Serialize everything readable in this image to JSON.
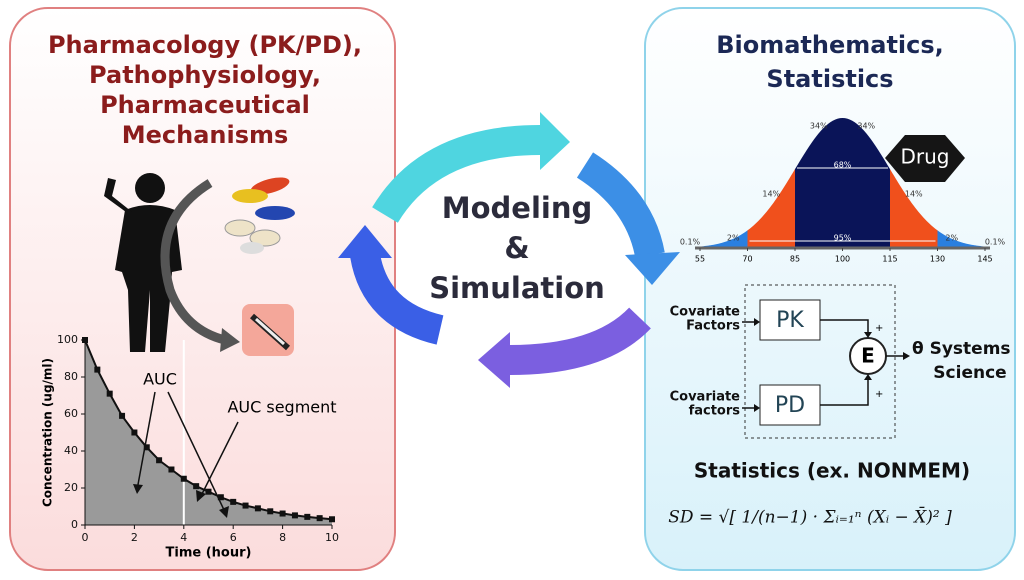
{
  "left_panel": {
    "title": [
      "Pharmacology (PK/PD),",
      "Pathophysiology,",
      "Pharmaceutical",
      "Mechanisms"
    ],
    "auc_label": "AUC",
    "auc_segment_label": "AUC segment",
    "chart": {
      "type": "line",
      "x_label": "Time (hour)",
      "y_label": "Concentration (ug/ml)",
      "xlim": [
        0,
        10
      ],
      "ylim": [
        0,
        100
      ],
      "xticks": [
        0,
        2,
        4,
        6,
        8,
        10
      ],
      "yticks": [
        0,
        20,
        40,
        60,
        80,
        100
      ],
      "x": [
        0,
        0.5,
        1,
        1.5,
        2,
        2.5,
        3,
        3.5,
        4,
        4.5,
        5,
        5.5,
        6,
        6.5,
        7,
        7.5,
        8,
        8.5,
        9,
        9.5,
        10
      ],
      "values": [
        100,
        84,
        71,
        59,
        50,
        42,
        35,
        30,
        25,
        21,
        18,
        15,
        12.5,
        10.5,
        9,
        7.4,
        6.2,
        5.2,
        4.4,
        3.7,
        3.1
      ]
    }
  },
  "center": {
    "lines": [
      "Modeling",
      "&",
      "Simulation"
    ]
  },
  "right_panel": {
    "title": [
      "Biomathematics,",
      "Statistics"
    ],
    "drug": "Drug",
    "distribution": {
      "labels_34": [
        "34%",
        "34%"
      ],
      "label_68": "68%",
      "labels_14": [
        "14%",
        "14%"
      ],
      "label_95": "95%",
      "labels_2": [
        "2%",
        "2%"
      ],
      "labels_01": [
        "0.1%",
        "0.1%"
      ],
      "xticks": [
        55,
        70,
        85,
        100,
        115,
        130,
        145
      ]
    },
    "model": {
      "covariate_1": [
        "Covariate",
        "Factors"
      ],
      "covariate_2": [
        "Covariate",
        "factors"
      ],
      "pk": "PK",
      "pd": "PD",
      "effect": "E",
      "plus": [
        "+",
        "+"
      ],
      "output": [
        "θ Systems",
        "Science"
      ]
    },
    "stats_title": "Statistics (ex. NONMEM)",
    "formula": "SD = √[ 1/(n−1) · Σᵢ₌₁ⁿ (Xᵢ − X̄)² ]"
  }
}
